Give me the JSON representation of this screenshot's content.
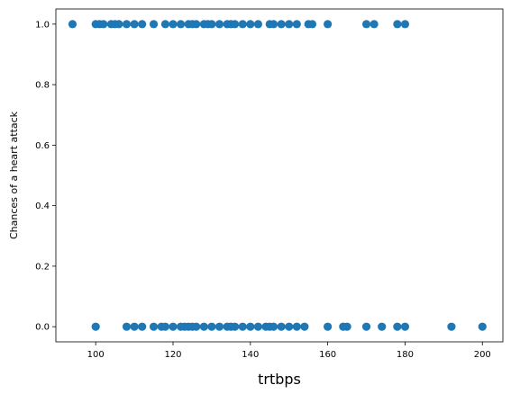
{
  "chart_data": {
    "type": "scatter",
    "title": "",
    "xlabel": "trtbps",
    "ylabel": "Chances of a heart attack",
    "xlim": [
      89.7,
      205.3
    ],
    "ylim": [
      -0.05,
      1.05
    ],
    "xticks": [
      100,
      120,
      140,
      160,
      180,
      200
    ],
    "yticks": [
      0.0,
      0.2,
      0.4,
      0.6,
      0.8,
      1.0
    ],
    "xtick_labels": [
      "100",
      "120",
      "140",
      "160",
      "180",
      "200"
    ],
    "ytick_labels": [
      "0.0",
      "0.2",
      "0.4",
      "0.6",
      "0.8",
      "1.0"
    ],
    "grid": false,
    "legend": "none",
    "marker_color": "#1f77b4",
    "series": [
      {
        "name": "",
        "x": [
          94,
          100,
          101,
          102,
          104,
          105,
          106,
          108,
          110,
          112,
          115,
          118,
          120,
          122,
          124,
          125,
          126,
          128,
          129,
          130,
          132,
          134,
          135,
          136,
          138,
          140,
          142,
          145,
          146,
          148,
          150,
          152,
          155,
          156,
          160,
          170,
          172,
          178,
          180,
          100,
          108,
          110,
          112,
          115,
          117,
          118,
          120,
          122,
          123,
          124,
          125,
          126,
          128,
          130,
          132,
          134,
          135,
          136,
          138,
          140,
          142,
          144,
          145,
          146,
          148,
          150,
          152,
          154,
          160,
          164,
          165,
          170,
          174,
          178,
          180,
          192,
          200
        ],
        "y": [
          1,
          1,
          1,
          1,
          1,
          1,
          1,
          1,
          1,
          1,
          1,
          1,
          1,
          1,
          1,
          1,
          1,
          1,
          1,
          1,
          1,
          1,
          1,
          1,
          1,
          1,
          1,
          1,
          1,
          1,
          1,
          1,
          1,
          1,
          1,
          1,
          1,
          1,
          1,
          0,
          0,
          0,
          0,
          0,
          0,
          0,
          0,
          0,
          0,
          0,
          0,
          0,
          0,
          0,
          0,
          0,
          0,
          0,
          0,
          0,
          0,
          0,
          0,
          0,
          0,
          0,
          0,
          0,
          0,
          0,
          0,
          0,
          0,
          0,
          0,
          0,
          0
        ]
      }
    ]
  }
}
